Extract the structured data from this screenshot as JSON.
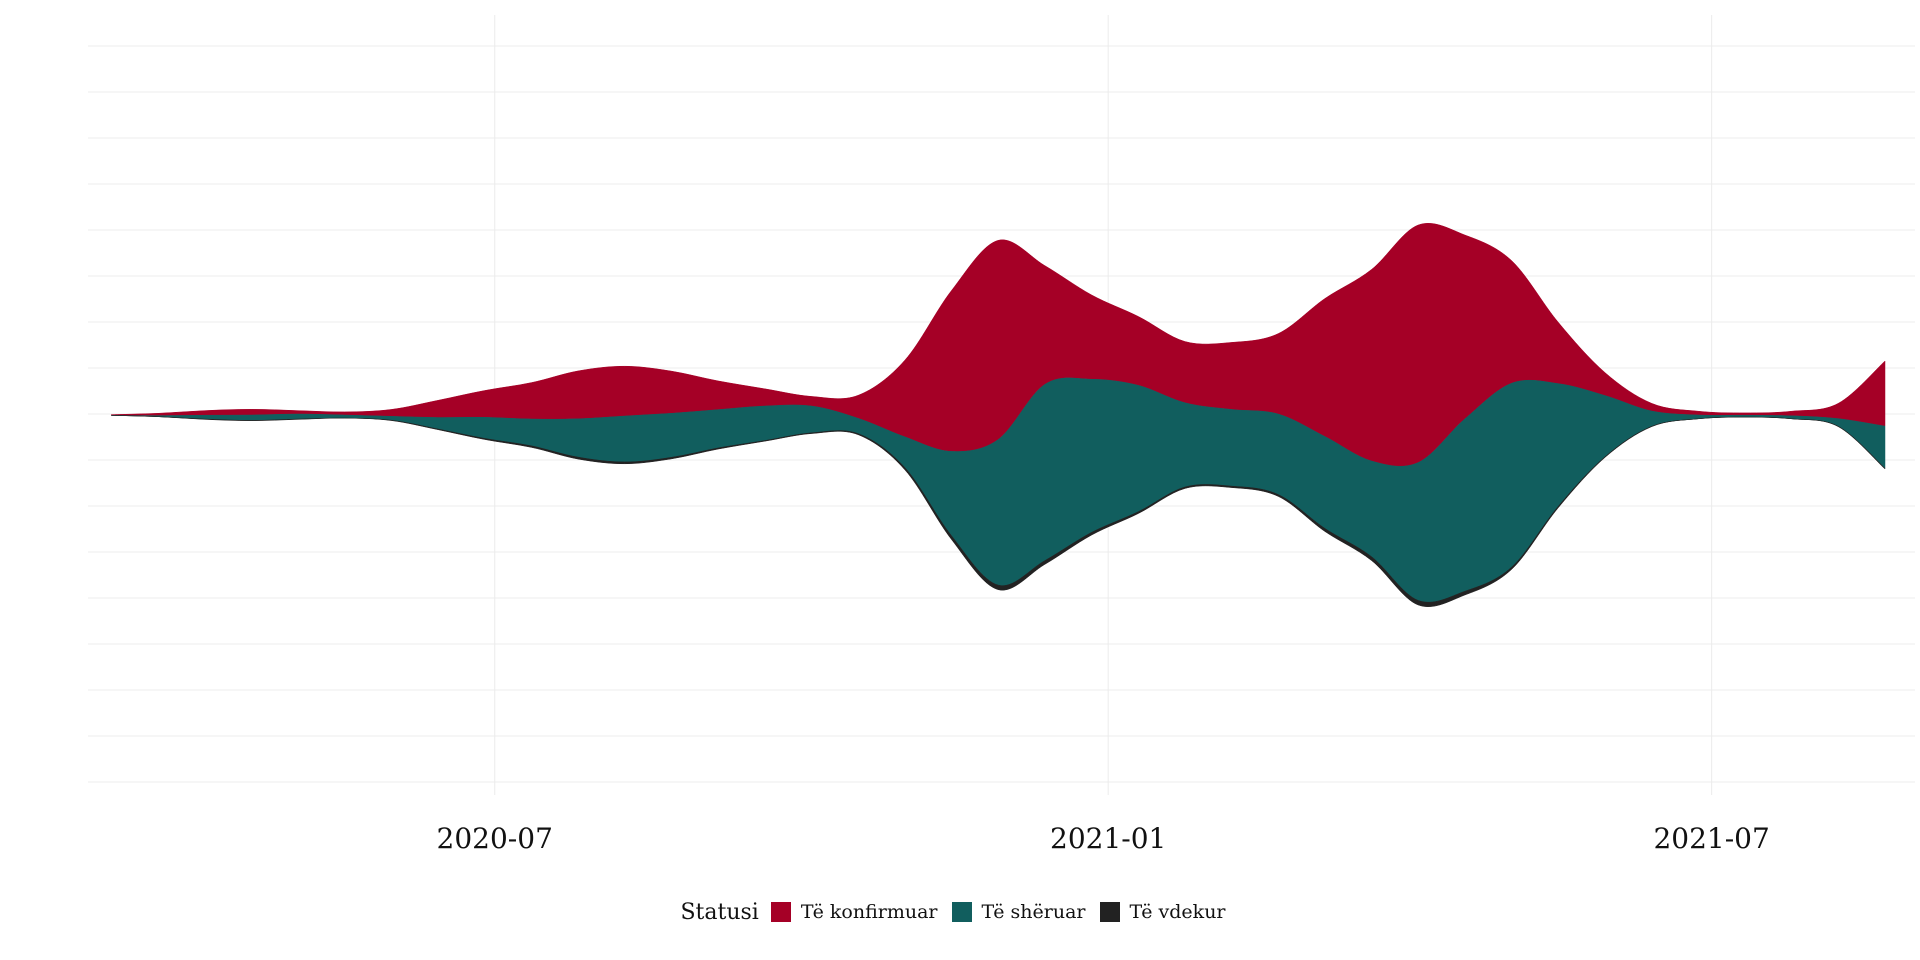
{
  "chart_data": {
    "type": "area",
    "subtype": "streamgraph",
    "title": "",
    "xlabel": "",
    "ylabel": "",
    "x_ticks": [
      "2020-07",
      "2021-01",
      "2021-07"
    ],
    "x_tick_dates": [
      "2020-07-01",
      "2021-01-01",
      "2021-07-01"
    ],
    "x_range": [
      "2020-03-01",
      "2021-08-31"
    ],
    "x": [
      "2020-03-08",
      "2020-03-22",
      "2020-04-05",
      "2020-04-19",
      "2020-05-03",
      "2020-05-17",
      "2020-05-31",
      "2020-06-14",
      "2020-06-28",
      "2020-07-12",
      "2020-07-26",
      "2020-08-09",
      "2020-08-23",
      "2020-09-06",
      "2020-09-20",
      "2020-10-04",
      "2020-10-18",
      "2020-11-01",
      "2020-11-15",
      "2020-11-29",
      "2020-12-13",
      "2020-12-27",
      "2021-01-10",
      "2021-01-24",
      "2021-02-07",
      "2021-02-21",
      "2021-03-07",
      "2021-03-21",
      "2021-04-04",
      "2021-04-18",
      "2021-05-02",
      "2021-05-16",
      "2021-05-30",
      "2021-06-13",
      "2021-06-27",
      "2021-07-11",
      "2021-07-25",
      "2021-08-08",
      "2021-08-22"
    ],
    "grid": {
      "x": true,
      "y": true
    },
    "y_axis_labels_shown": false,
    "series": [
      {
        "name": "Të konfirmuar",
        "color": "#a50026",
        "values": [
          2,
          6,
          12,
          15,
          9,
          8,
          18,
          45,
          70,
          95,
          125,
          130,
          110,
          75,
          45,
          25,
          60,
          200,
          420,
          520,
          310,
          220,
          180,
          160,
          175,
          210,
          360,
          500,
          620,
          480,
          320,
          160,
          60,
          20,
          10,
          6,
          12,
          40,
          170
        ]
      },
      {
        "name": "Të shëruar",
        "color": "#115e5e",
        "values": [
          0,
          3,
          10,
          14,
          13,
          8,
          10,
          30,
          55,
          70,
          100,
          120,
          115,
          100,
          90,
          70,
          40,
          80,
          220,
          380,
          460,
          400,
          330,
          220,
          200,
          210,
          240,
          250,
          360,
          450,
          480,
          320,
          160,
          40,
          10,
          5,
          8,
          20,
          110
        ]
      },
      {
        "name": "Të vdekur",
        "color": "#222222",
        "values": [
          0,
          0,
          1,
          1,
          1,
          0,
          1,
          2,
          3,
          4,
          5,
          5,
          4,
          3,
          2,
          2,
          3,
          6,
          10,
          12,
          10,
          7,
          5,
          4,
          4,
          5,
          8,
          10,
          12,
          10,
          6,
          4,
          2,
          1,
          0,
          0,
          0,
          1,
          2
        ]
      }
    ],
    "legend": {
      "title": "Statusi",
      "position": "bottom"
    }
  }
}
